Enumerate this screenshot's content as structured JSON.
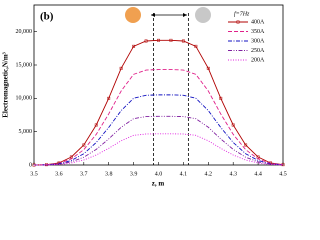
{
  "chart_data": {
    "type": "line",
    "title": "(b)",
    "legend_title": "f=7Hz",
    "xlabel": "z, m",
    "ylabel": "Electromagnetic,N/m³",
    "x": [
      3.5,
      3.55,
      3.6,
      3.65,
      3.7,
      3.75,
      3.8,
      3.85,
      3.9,
      3.95,
      4.0,
      4.05,
      4.1,
      4.15,
      4.2,
      4.25,
      4.3,
      4.35,
      4.4,
      4.45,
      4.5
    ],
    "series": [
      {
        "name": "400A",
        "color": "#b00000",
        "style": "solid",
        "marker": "square",
        "values": [
          0,
          50,
          300,
          1200,
          3000,
          6000,
          10000,
          14500,
          17800,
          18600,
          18700,
          18700,
          18600,
          17800,
          14500,
          10000,
          6000,
          3000,
          1200,
          300,
          50
        ]
      },
      {
        "name": "350A",
        "color": "#e0208a",
        "style": "dashed",
        "values": [
          0,
          40,
          230,
          920,
          2300,
          4600,
          7660,
          11100,
          13600,
          14240,
          14320,
          14320,
          14240,
          13600,
          11100,
          7660,
          4600,
          2300,
          920,
          230,
          40
        ]
      },
      {
        "name": "300A",
        "color": "#1010c0",
        "style": "dashdot",
        "values": [
          0,
          30,
          170,
          680,
          1690,
          3380,
          5630,
          8160,
          10010,
          10460,
          10520,
          10520,
          10460,
          10010,
          8160,
          5630,
          3380,
          1690,
          680,
          170,
          30
        ]
      },
      {
        "name": "250A",
        "color": "#8020a0",
        "style": "dashdotdot",
        "values": [
          0,
          20,
          120,
          470,
          1170,
          2340,
          3910,
          5660,
          6950,
          7270,
          7300,
          7300,
          7270,
          6950,
          5660,
          3910,
          2340,
          1170,
          470,
          120,
          20
        ]
      },
      {
        "name": "200A",
        "color": "#e020e0",
        "style": "dotted",
        "values": [
          0,
          10,
          80,
          300,
          750,
          1500,
          2500,
          3630,
          4450,
          4650,
          4680,
          4680,
          4650,
          4450,
          3630,
          2500,
          1500,
          750,
          300,
          80,
          10
        ]
      }
    ],
    "vlines": [
      3.98,
      4.12
    ],
    "xlim": [
      3.5,
      4.5
    ],
    "xticks": [
      3.5,
      3.6,
      3.7,
      3.8,
      3.9,
      {
        "value": 4,
        "label": "4.0"
      },
      4.1,
      4.2,
      4.3,
      4.4,
      4.5
    ],
    "ylim": [
      0,
      24000
    ],
    "yticks": [
      0,
      {
        "value": 5000,
        "label": "5,000"
      },
      {
        "value": 10000,
        "label": "10,000"
      },
      {
        "value": 15000,
        "label": "15,000"
      },
      {
        "value": 20000,
        "label": "20,000"
      }
    ],
    "legend": "upper right"
  }
}
